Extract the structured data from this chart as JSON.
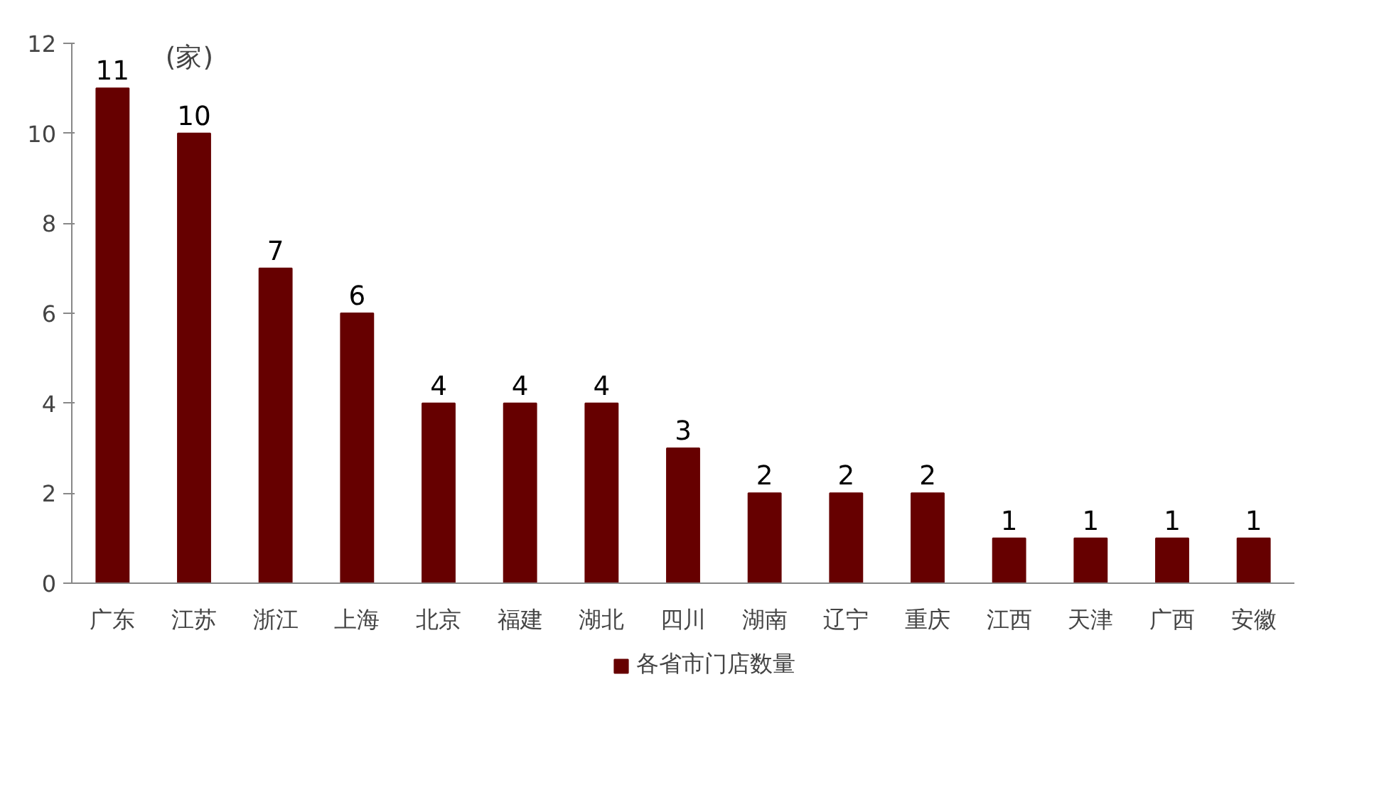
{
  "chart_data": {
    "type": "bar",
    "ylabel": "(家)",
    "categories": [
      "广东",
      "江苏",
      "浙江",
      "上海",
      "北京",
      "福建",
      "湖北",
      "四川",
      "湖南",
      "辽宁",
      "重庆",
      "江西",
      "天津",
      "广西",
      "安徽"
    ],
    "series": [
      {
        "name": "各省市门店数量",
        "color": "#660000",
        "values": [
          11,
          10,
          7,
          6,
          4,
          4,
          4,
          3,
          2,
          2,
          2,
          1,
          1,
          1,
          1
        ]
      }
    ],
    "ylim": [
      0,
      12
    ],
    "yticks": [
      0,
      2,
      4,
      6,
      8,
      10,
      12
    ],
    "grid": false,
    "legend": "bottom",
    "data_labels": true
  }
}
